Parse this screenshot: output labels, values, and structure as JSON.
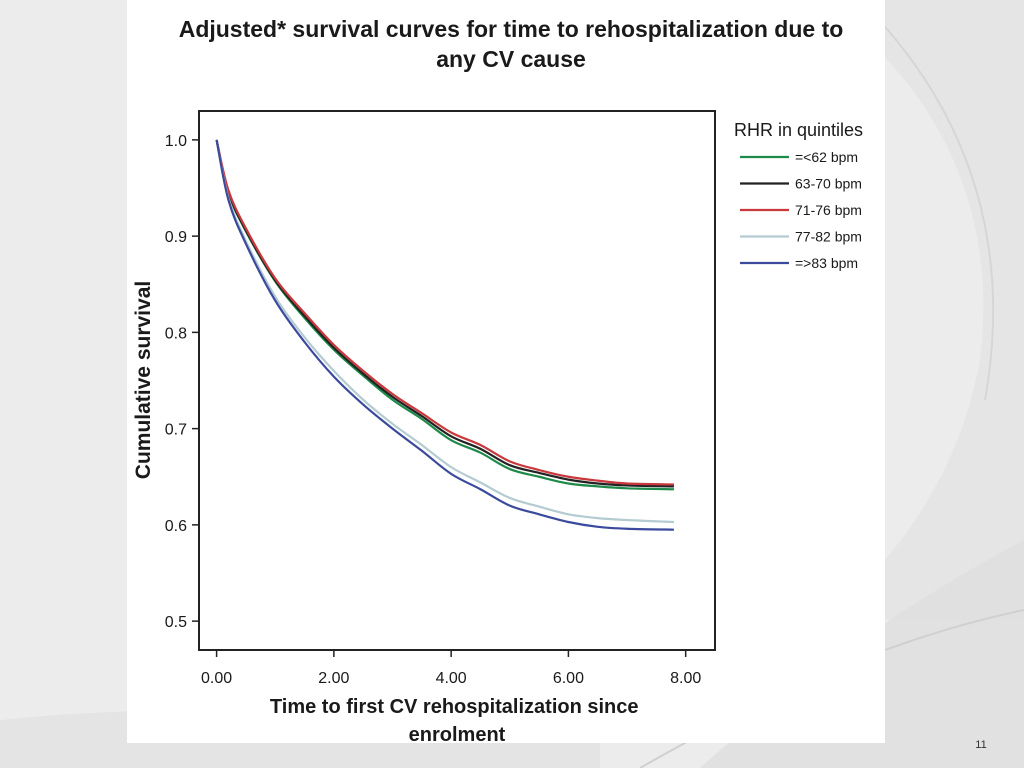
{
  "slide": {
    "number": "11"
  },
  "chart_data": {
    "type": "line",
    "title": "Adjusted* survival curves for time to rehospitalization due to any CV cause",
    "xlabel": "Time to first CV rehospitalization since enrolment",
    "ylabel": "Cumulative survival",
    "xlim": [
      -0.3,
      8.5
    ],
    "ylim": [
      0.47,
      1.03
    ],
    "xticks": [
      0,
      2,
      4,
      6,
      8
    ],
    "xtick_labels": [
      "0.00",
      "2.00",
      "4.00",
      "6.00",
      "8.00"
    ],
    "yticks": [
      0.5,
      0.6,
      0.7,
      0.8,
      0.9,
      1.0
    ],
    "ytick_labels": [
      "0.5",
      "0.6",
      "0.7",
      "0.8",
      "0.9",
      "1.0"
    ],
    "grid": false,
    "legend": {
      "title": "RHR in quintiles",
      "position": "right"
    },
    "series": [
      {
        "name": "=<62 bpm",
        "color": "#1e8a4a",
        "x": [
          0,
          0.2,
          0.5,
          1.0,
          1.5,
          2.0,
          2.5,
          3.0,
          3.5,
          4.0,
          4.5,
          5.0,
          5.5,
          6.0,
          6.5,
          7.0,
          7.8
        ],
        "y": [
          1.0,
          0.945,
          0.905,
          0.853,
          0.815,
          0.782,
          0.755,
          0.73,
          0.71,
          0.688,
          0.675,
          0.658,
          0.65,
          0.643,
          0.64,
          0.638,
          0.637
        ]
      },
      {
        "name": "63-70 bpm",
        "color": "#222222",
        "x": [
          0,
          0.2,
          0.5,
          1.0,
          1.5,
          2.0,
          2.5,
          3.0,
          3.5,
          4.0,
          4.5,
          5.0,
          5.5,
          6.0,
          6.5,
          7.0,
          7.8
        ],
        "y": [
          1.0,
          0.946,
          0.906,
          0.854,
          0.817,
          0.784,
          0.757,
          0.733,
          0.713,
          0.692,
          0.679,
          0.662,
          0.654,
          0.647,
          0.643,
          0.641,
          0.64
        ]
      },
      {
        "name": "71-76 bpm",
        "color": "#c8383c",
        "x": [
          0,
          0.2,
          0.5,
          1.0,
          1.5,
          2.0,
          2.5,
          3.0,
          3.5,
          4.0,
          4.5,
          5.0,
          5.5,
          6.0,
          6.5,
          7.0,
          7.8
        ],
        "y": [
          1.0,
          0.948,
          0.908,
          0.856,
          0.82,
          0.787,
          0.76,
          0.736,
          0.716,
          0.696,
          0.683,
          0.666,
          0.657,
          0.65,
          0.646,
          0.643,
          0.642
        ]
      },
      {
        "name": "77-82 bpm",
        "color": "#b4cbd2",
        "x": [
          0,
          0.2,
          0.5,
          1.0,
          1.5,
          2.0,
          2.5,
          3.0,
          3.5,
          4.0,
          4.5,
          5.0,
          5.5,
          6.0,
          6.5,
          7.0,
          7.8
        ],
        "y": [
          1.0,
          0.94,
          0.895,
          0.837,
          0.795,
          0.76,
          0.73,
          0.705,
          0.683,
          0.66,
          0.644,
          0.628,
          0.619,
          0.611,
          0.607,
          0.605,
          0.603
        ]
      },
      {
        "name": "=>83 bpm",
        "color": "#3b4a9c",
        "x": [
          0,
          0.2,
          0.5,
          1.0,
          1.5,
          2.0,
          2.5,
          3.0,
          3.5,
          4.0,
          4.5,
          5.0,
          5.5,
          6.0,
          6.5,
          7.0,
          7.8
        ],
        "y": [
          1.0,
          0.938,
          0.892,
          0.833,
          0.79,
          0.754,
          0.725,
          0.7,
          0.677,
          0.653,
          0.637,
          0.62,
          0.611,
          0.603,
          0.598,
          0.596,
          0.595
        ]
      }
    ]
  }
}
